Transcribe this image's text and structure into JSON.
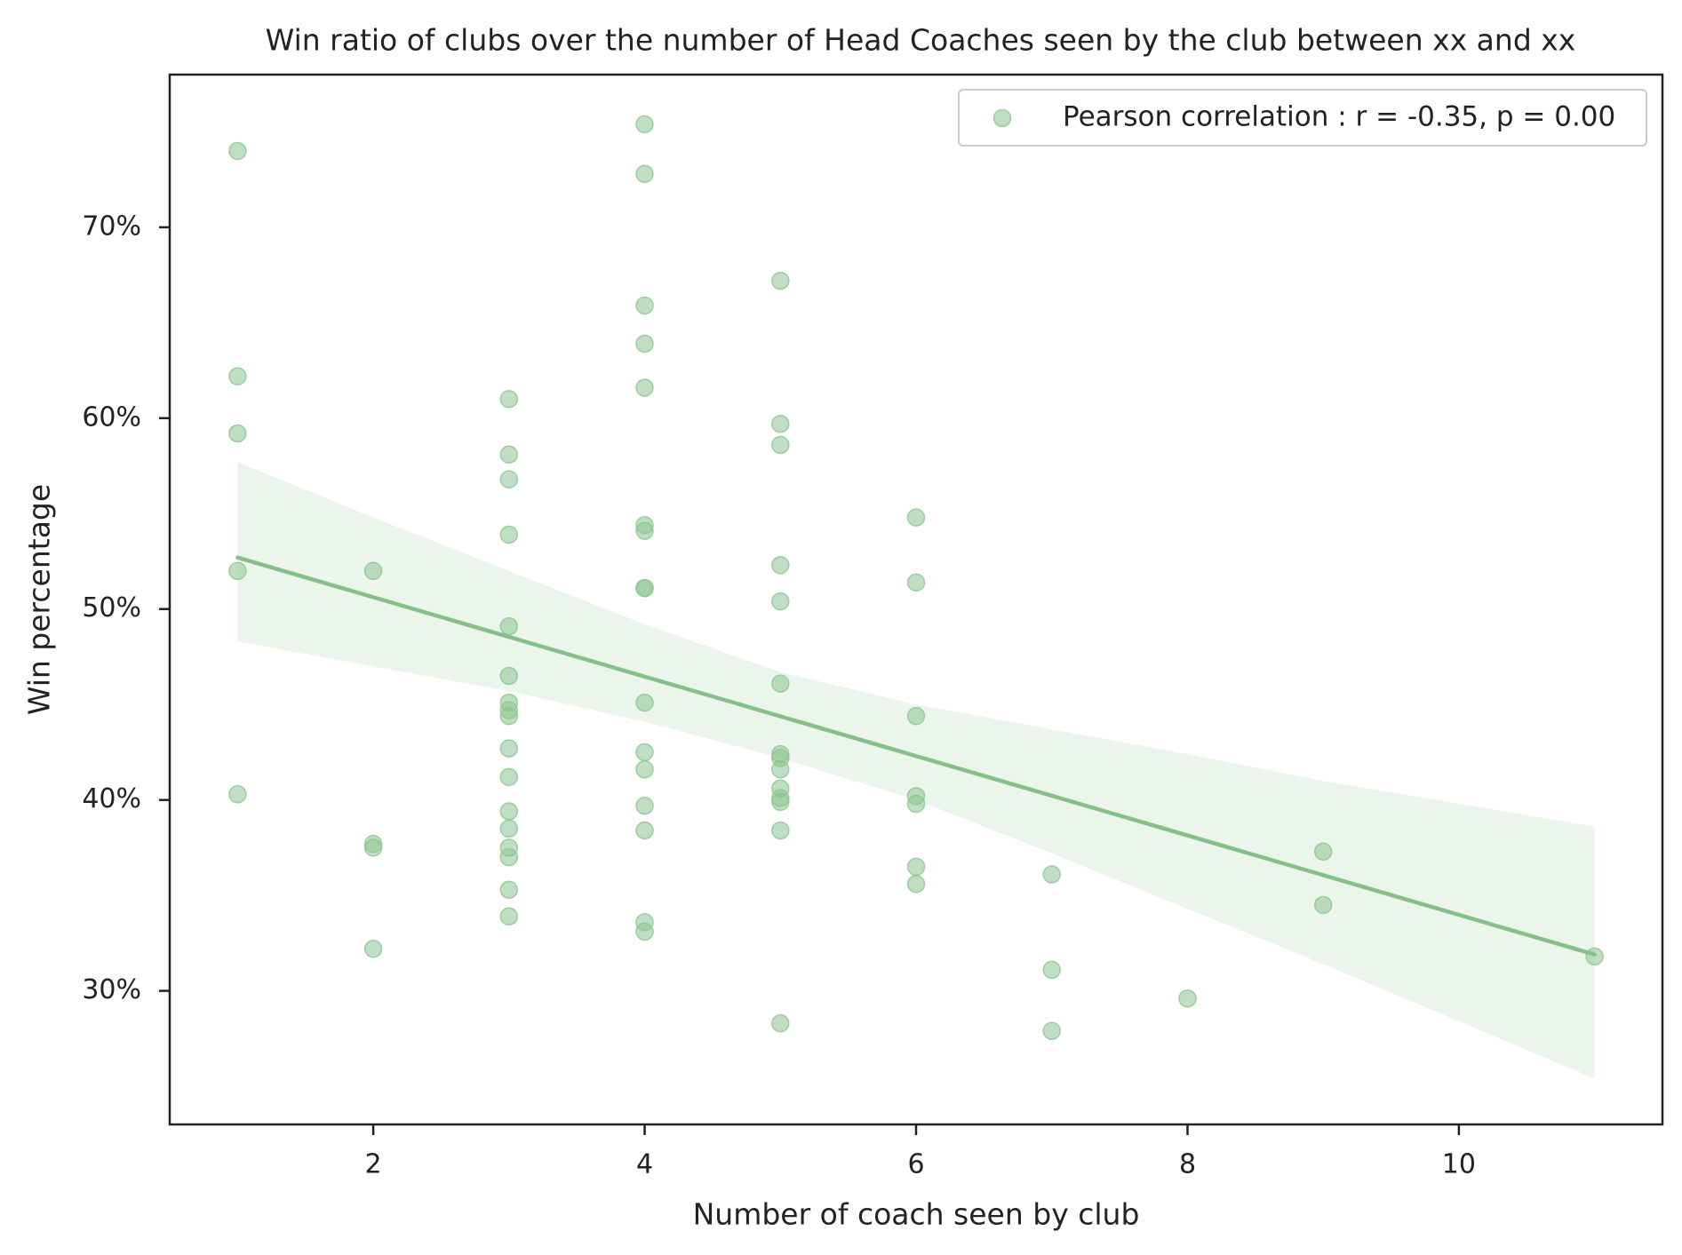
{
  "chart_data": {
    "type": "scatter",
    "title": "Win ratio of clubs over the number of Head Coaches seen by the club between xx and xx",
    "xlabel": "Number of coach seen by club",
    "ylabel": "Win percentage",
    "xlim": [
      0.5,
      11.5
    ],
    "ylim": [
      0.23,
      0.78
    ],
    "x_ticks": [
      2,
      4,
      6,
      8,
      10
    ],
    "x_tick_labels": [
      "2",
      "4",
      "6",
      "8",
      "10"
    ],
    "y_ticks": [
      0.3,
      0.4,
      0.5,
      0.6,
      0.7
    ],
    "y_tick_labels": [
      "30%",
      "40%",
      "50%",
      "60%",
      "70%"
    ],
    "grid": false,
    "legend_placement": "top-right",
    "colors": {
      "points": "#8cc490",
      "line": "#86bf88",
      "band": "#e6f2e6",
      "axes": "#222222"
    },
    "series": [
      {
        "name": "Pearson correlation : r = -0.35, p = 0.00",
        "points": [
          [
            1,
            0.74
          ],
          [
            1,
            0.622
          ],
          [
            1,
            0.592
          ],
          [
            1,
            0.52
          ],
          [
            1,
            0.403
          ],
          [
            2,
            0.52
          ],
          [
            2,
            0.377
          ],
          [
            2,
            0.375
          ],
          [
            2,
            0.322
          ],
          [
            3,
            0.61
          ],
          [
            3,
            0.581
          ],
          [
            3,
            0.568
          ],
          [
            3,
            0.539
          ],
          [
            3,
            0.491
          ],
          [
            3,
            0.465
          ],
          [
            3,
            0.451
          ],
          [
            3,
            0.447
          ],
          [
            3,
            0.444
          ],
          [
            3,
            0.427
          ],
          [
            3,
            0.412
          ],
          [
            3,
            0.394
          ],
          [
            3,
            0.385
          ],
          [
            3,
            0.375
          ],
          [
            3,
            0.37
          ],
          [
            3,
            0.353
          ],
          [
            3,
            0.339
          ],
          [
            4,
            0.754
          ],
          [
            4,
            0.728
          ],
          [
            4,
            0.659
          ],
          [
            4,
            0.639
          ],
          [
            4,
            0.616
          ],
          [
            4,
            0.544
          ],
          [
            4,
            0.541
          ],
          [
            4,
            0.511
          ],
          [
            4,
            0.511
          ],
          [
            4,
            0.451
          ],
          [
            4,
            0.425
          ],
          [
            4,
            0.416
          ],
          [
            4,
            0.397
          ],
          [
            4,
            0.384
          ],
          [
            4,
            0.336
          ],
          [
            4,
            0.331
          ],
          [
            5,
            0.672
          ],
          [
            5,
            0.597
          ],
          [
            5,
            0.586
          ],
          [
            5,
            0.523
          ],
          [
            5,
            0.504
          ],
          [
            5,
            0.461
          ],
          [
            5,
            0.424
          ],
          [
            5,
            0.422
          ],
          [
            5,
            0.416
          ],
          [
            5,
            0.406
          ],
          [
            5,
            0.401
          ],
          [
            5,
            0.399
          ],
          [
            5,
            0.384
          ],
          [
            5,
            0.283
          ],
          [
            6,
            0.548
          ],
          [
            6,
            0.514
          ],
          [
            6,
            0.444
          ],
          [
            6,
            0.402
          ],
          [
            6,
            0.398
          ],
          [
            6,
            0.365
          ],
          [
            6,
            0.356
          ],
          [
            7,
            0.361
          ],
          [
            7,
            0.311
          ],
          [
            7,
            0.279
          ],
          [
            8,
            0.296
          ],
          [
            9,
            0.373
          ],
          [
            9,
            0.345
          ],
          [
            11,
            0.318
          ]
        ]
      }
    ],
    "regression": {
      "x": [
        1,
        11
      ],
      "y": [
        0.527,
        0.319
      ],
      "ci_x": [
        1,
        2,
        3,
        4,
        5,
        6,
        7,
        8,
        9,
        10,
        11
      ],
      "ci_upper": [
        0.577,
        0.548,
        0.52,
        0.492,
        0.467,
        0.45,
        0.437,
        0.424,
        0.41,
        0.398,
        0.386
      ],
      "ci_lower": [
        0.483,
        0.47,
        0.457,
        0.441,
        0.422,
        0.4,
        0.372,
        0.343,
        0.314,
        0.284,
        0.254
      ]
    }
  }
}
